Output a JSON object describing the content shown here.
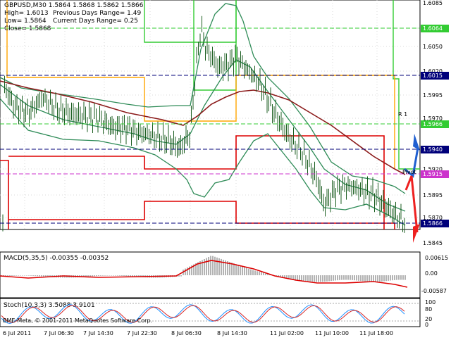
{
  "header": {
    "symbol_line": "GBPUSD,M30  1.5864 1.5868 1.5862 1.5866",
    "high_line": "High= 1.6013",
    "prev_range": "Previous Days Range= 1.49",
    "low_line": "Low= 1.5864",
    "cur_range": "Current Days Range= 0.25",
    "close_line": "Close= 1.5868"
  },
  "colors": {
    "green_box": "#33cc33",
    "orange_box": "#ffa500",
    "red_box": "#dd0000",
    "bollinger": "#2e8b57",
    "ma": "#8b1a1a",
    "candle": "#1b5e20",
    "blue_arrow": "#1f5fd0",
    "red_arrow": "#ee2020",
    "tag_navy": "#00007a",
    "tag_green": "#33cc33",
    "tag_magenta": "#cc33cc"
  },
  "price_axis": {
    "labels": [
      "1.6085",
      "1.6064",
      "1.6050",
      "1.6020",
      "1.6015",
      "1.5995",
      "1.5970",
      "1.5966",
      "1.5940",
      "1.5920",
      "1.5915",
      "1.5895",
      "1.5870",
      "1.5866",
      "1.5845"
    ],
    "tags": [
      {
        "text": "1.6064",
        "color": "tag_green"
      },
      {
        "text": "1.6015",
        "color": "tag_navy"
      },
      {
        "text": "1.5966",
        "color": "tag_green"
      },
      {
        "text": "1.5940",
        "color": "tag_navy"
      },
      {
        "text": "1.5915",
        "color": "tag_magenta"
      },
      {
        "text": "1.5866",
        "color": "tag_navy"
      }
    ]
  },
  "level_labels": {
    "r1": "R 1",
    "pivot": "Pivot"
  },
  "time_axis": {
    "labels": [
      "6 Jul 2011",
      "7 Jul 06:30",
      "7 Jul 14:30",
      "7 Jul 22:30",
      "8 Jul 06:30",
      "8 Jul 14:30",
      "11 Jul 02:00",
      "11 Jul 10:00",
      "11 Jul 18:00"
    ]
  },
  "macd": {
    "title": "MACD(5,35,5) -0.00355 -0.00352",
    "scale": [
      "0.00615",
      "0.00",
      "-0.00587"
    ]
  },
  "stoch": {
    "title": "Stoch(10,3,3) 3.5088 3.9101",
    "scale": [
      "100",
      "80",
      "20",
      "0"
    ]
  },
  "footer": {
    "copyright": "BME-Meta, © 2001-2011 MetaQuotes Software Corp."
  }
}
